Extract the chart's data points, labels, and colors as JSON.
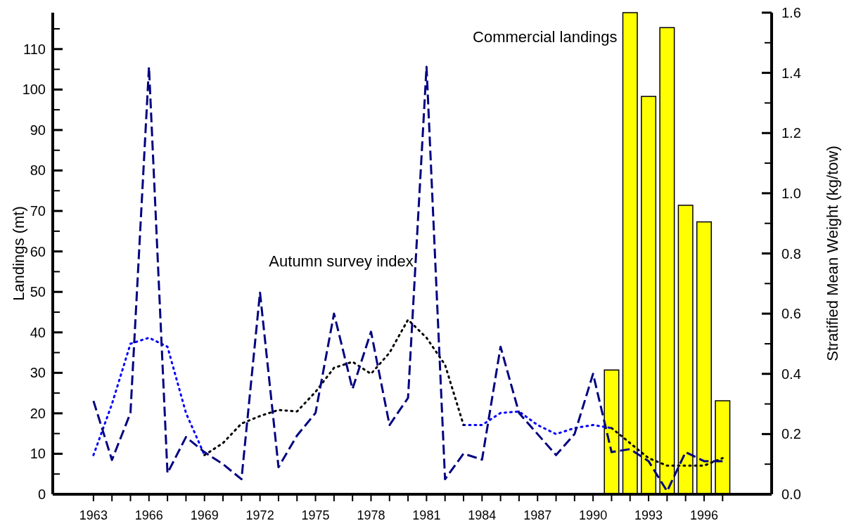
{
  "chart_data": {
    "type": "bar",
    "ylabel": "Landings (mt)",
    "y2label": "Stratified Mean Weight (kg/tow)",
    "x": [
      1963,
      1964,
      1965,
      1966,
      1967,
      1968,
      1969,
      1970,
      1971,
      1972,
      1973,
      1974,
      1975,
      1976,
      1977,
      1978,
      1979,
      1980,
      1981,
      1982,
      1983,
      1984,
      1985,
      1986,
      1987,
      1988,
      1989,
      1990,
      1991,
      1992,
      1993,
      1994,
      1995,
      1996,
      1997
    ],
    "xlim": [
      1960.8,
      1999.65
    ],
    "xticks": [
      1963,
      {
        "value": 1964,
        "label": null
      },
      {
        "value": 1965,
        "label": null
      },
      1966,
      {
        "value": 1967,
        "label": null
      },
      {
        "value": 1968,
        "label": null
      },
      1969,
      {
        "value": 1970,
        "label": null
      },
      {
        "value": 1971,
        "label": null
      },
      1972,
      {
        "value": 1973,
        "label": null
      },
      {
        "value": 1974,
        "label": null
      },
      1975,
      {
        "value": 1976,
        "label": null
      },
      {
        "value": 1977,
        "label": null
      },
      1978,
      {
        "value": 1979,
        "label": null
      },
      {
        "value": 1980,
        "label": null
      },
      1981,
      {
        "value": 1982,
        "label": null
      },
      {
        "value": 1983,
        "label": null
      },
      1984,
      {
        "value": 1985,
        "label": null
      },
      {
        "value": 1986,
        "label": null
      },
      1987,
      {
        "value": 1988,
        "label": null
      },
      {
        "value": 1989,
        "label": null
      },
      1990,
      {
        "value": 1991,
        "label": null
      },
      {
        "value": 1992,
        "label": null
      },
      1993,
      {
        "value": 1994,
        "label": null
      },
      {
        "value": 1995,
        "label": null
      },
      1996,
      {
        "value": 1997,
        "label": null
      }
    ],
    "ylim": [
      0,
      119
    ],
    "yticks": [
      0,
      {
        "value": 5,
        "label": null
      },
      10,
      {
        "value": 15,
        "label": null
      },
      20,
      {
        "value": 25,
        "label": null
      },
      30,
      {
        "value": 35,
        "label": null
      },
      40,
      {
        "value": 45,
        "label": null
      },
      50,
      {
        "value": 55,
        "label": null
      },
      60,
      {
        "value": 65,
        "label": null
      },
      70,
      {
        "value": 75,
        "label": null
      },
      80,
      {
        "value": 85,
        "label": null
      },
      90,
      {
        "value": 95,
        "label": null
      },
      100,
      {
        "value": 105,
        "label": null
      },
      110,
      {
        "value": 115,
        "label": null
      }
    ],
    "y2lim": [
      0,
      1.6
    ],
    "y2ticks": [
      {
        "value": 0,
        "label": "0.0"
      },
      {
        "value": 0.1,
        "label": null
      },
      0.2,
      {
        "value": 0.3,
        "label": null
      },
      0.4,
      {
        "value": 0.5,
        "label": null
      },
      0.6,
      {
        "value": 0.7,
        "label": null
      },
      0.8,
      {
        "value": 0.9,
        "label": null
      },
      {
        "value": 1,
        "label": "1.0"
      },
      {
        "value": 1.1,
        "label": null
      },
      1.2,
      {
        "value": 1.3,
        "label": null
      },
      1.4,
      {
        "value": 1.5,
        "label": null
      },
      1.6
    ],
    "series": [
      {
        "color": "#ffff00",
        "values": [
          null,
          null,
          null,
          null,
          null,
          null,
          null,
          null,
          null,
          null,
          null,
          null,
          null,
          null,
          null,
          null,
          null,
          null,
          null,
          null,
          null,
          null,
          null,
          null,
          null,
          null,
          null,
          null,
          30.7,
          119,
          98.3,
          115.3,
          71.4,
          67.3,
          23.1
        ]
      },
      {
        "type": "line",
        "axis": "y2",
        "color": "#0000ff",
        "line_style": "dotted",
        "values": [
          0.13,
          0.3,
          0.5,
          0.52,
          0.49,
          0.27,
          0.13,
          null,
          null,
          null,
          null,
          null,
          null,
          null,
          null,
          null,
          null,
          null,
          null,
          null,
          0.23,
          0.23,
          0.27,
          0.275,
          0.23,
          0.2,
          0.22,
          0.23,
          0.22,
          null,
          null,
          null,
          null,
          null,
          null
        ]
      },
      {
        "type": "line",
        "axis": "y2",
        "color": "#000000",
        "line_style": "dotted",
        "values": [
          null,
          null,
          null,
          null,
          null,
          null,
          0.13,
          0.17,
          0.235,
          0.26,
          0.28,
          0.275,
          0.34,
          0.42,
          0.44,
          0.4,
          0.47,
          0.58,
          0.52,
          0.43,
          0.23,
          null,
          null,
          null,
          null,
          null,
          null,
          null,
          0.22,
          0.17,
          0.12,
          0.095,
          0.095,
          0.095,
          0.12
        ]
      },
      {
        "type": "line",
        "axis": "y2",
        "color": "#000080",
        "line_style": "dashed",
        "values": [
          0.31,
          0.114,
          0.27,
          1.42,
          0.07,
          0.19,
          0.14,
          0.1,
          0.05,
          0.67,
          0.09,
          0.195,
          0.27,
          0.6,
          0.35,
          0.54,
          0.23,
          0.32,
          1.42,
          0.05,
          0.135,
          0.115,
          0.49,
          0.27,
          0.2,
          0.13,
          0.2,
          0.4,
          0.14,
          0.15,
          0.11,
          0.01,
          0.14,
          0.11,
          0.11
        ]
      }
    ],
    "annotations": [
      "Autumn survey index",
      "Commercial landings"
    ]
  }
}
